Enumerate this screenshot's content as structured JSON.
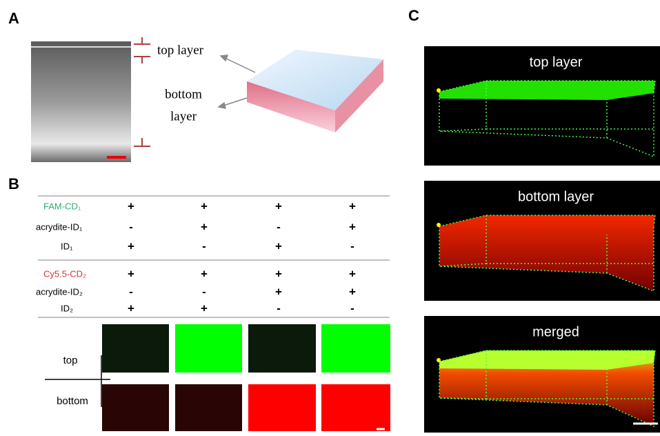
{
  "panel_a": {
    "label": "A",
    "top_layer": "top layer",
    "bottom_layer": [
      "bottom",
      "layer"
    ]
  },
  "panel_b": {
    "label": "B",
    "groups": [
      {
        "rows": [
          {
            "name": "FAM-CD₁",
            "marks": [
              "+",
              "+",
              "+",
              "+"
            ]
          },
          {
            "name": "acrydite-ID₁",
            "marks": [
              "-",
              "+",
              "-",
              "+"
            ]
          },
          {
            "name": "ID₁",
            "marks": [
              "+",
              "-",
              "+",
              "-"
            ]
          }
        ]
      },
      {
        "rows": [
          {
            "name": "Cy5.5-CD₂",
            "marks": [
              "+",
              "+",
              "+",
              "+"
            ]
          },
          {
            "name": "acrydite-ID₂",
            "marks": [
              "-",
              "-",
              "+",
              "+"
            ]
          },
          {
            "name": "ID₂",
            "marks": [
              "+",
              "+",
              "-",
              "-"
            ]
          }
        ]
      }
    ],
    "image_rows": [
      "top",
      "bottom"
    ]
  },
  "panel_c": {
    "label": "C",
    "images": [
      "top layer",
      "bottom layer",
      "merged"
    ]
  }
}
